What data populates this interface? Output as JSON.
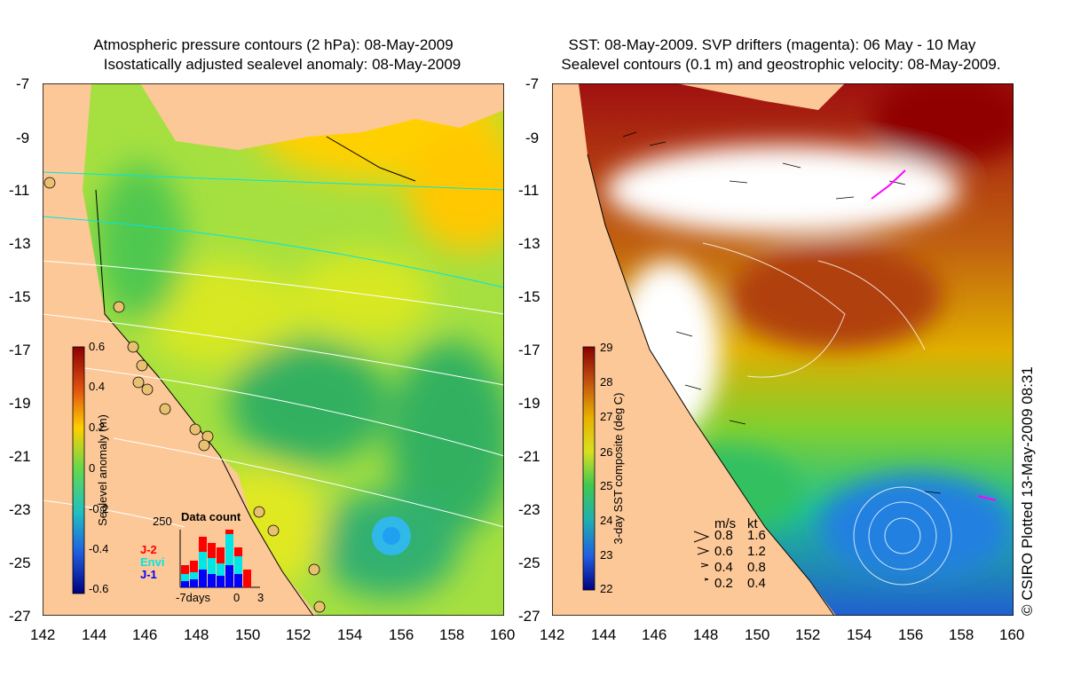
{
  "left_panel": {
    "title_line1": "Atmospheric pressure contours (2 hPa): 08-May-2009",
    "title_line2": "Isostatically adjusted sealevel anomaly: 08-May-2009",
    "colorbar_label": "Sealevel anomaly (m)",
    "colorbar_ticks": [
      "0.6",
      "0.4",
      "0.2",
      "0",
      "-0.2",
      "-0.4",
      "-0.6"
    ],
    "inset": {
      "title": "Data count",
      "ymax_label": "250",
      "legend": [
        {
          "name": "J-2",
          "color": "#ff0000"
        },
        {
          "name": "Envi",
          "color": "#00e5e5"
        },
        {
          "name": "J-1",
          "color": "#0000ff"
        }
      ],
      "x_ticks": [
        "-7days",
        "0",
        "3"
      ]
    }
  },
  "right_panel": {
    "title_line1": "SST: 08-May-2009. SVP drifters (magenta): 06 May - 10 May",
    "title_line2": "Sealevel contours (0.1 m) and geostrophic velocity: 08-May-2009.",
    "colorbar_label": "3-day SST composite (deg C)",
    "colorbar_ticks": [
      "29",
      "28",
      "27",
      "26",
      "25",
      "24",
      "23",
      "22"
    ],
    "velocity_legend": {
      "header": [
        "m/s",
        "kt"
      ],
      "rows": [
        [
          "0.8",
          "1.6"
        ],
        [
          "0.6",
          "1.2"
        ],
        [
          "0.4",
          "0.8"
        ],
        [
          "0.2",
          "0.4"
        ]
      ]
    }
  },
  "axes": {
    "lat_ticks": [
      "-7",
      "-9",
      "-11",
      "-13",
      "-15",
      "-17",
      "-19",
      "-21",
      "-23",
      "-25",
      "-27"
    ],
    "lon_ticks": [
      "142",
      "144",
      "146",
      "148",
      "150",
      "152",
      "154",
      "156",
      "158",
      "160"
    ]
  },
  "credit": "© CSIRO Plotted 13-May-2009 08:31",
  "colors": {
    "land": "#fdc897",
    "sla_positive": "#ffd000",
    "sla_zero": "#70e050",
    "sst_warm": "#c07010",
    "sst_cool": "#20c0a0"
  }
}
